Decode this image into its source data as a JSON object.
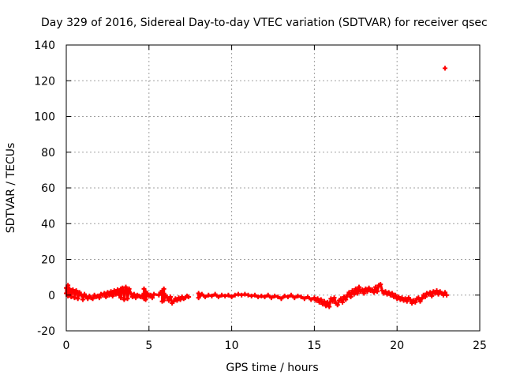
{
  "chart_data": {
    "type": "scatter",
    "title": "Day 329 of 2016, Sidereal Day-to-day VTEC variation (SDTVAR) for receiver qsec",
    "xlabel": "GPS time / hours",
    "ylabel": "SDTVAR / TECUs",
    "xlim": [
      0,
      25
    ],
    "ylim": [
      -20,
      140
    ],
    "xticks": [
      0,
      5,
      10,
      15,
      20,
      25
    ],
    "yticks": [
      -20,
      0,
      20,
      40,
      60,
      80,
      100,
      120,
      140
    ],
    "xtick_labels": [
      "0",
      "5",
      "10",
      "15",
      "20",
      "25"
    ],
    "ytick_labels": [
      "-20",
      "0",
      "20",
      "40",
      "60",
      "80",
      "100",
      "120",
      "140"
    ],
    "grid": true,
    "marker": "plus",
    "series": [
      {
        "name": "SDTVAR",
        "color": "#ff0000",
        "points": [
          [
            0.0,
            4.0
          ],
          [
            0.0,
            1.0
          ],
          [
            0.1,
            5.5
          ],
          [
            0.1,
            -0.5
          ],
          [
            0.2,
            3.5
          ],
          [
            0.2,
            0.0
          ],
          [
            0.3,
            2.5
          ],
          [
            0.3,
            -1.0
          ],
          [
            0.4,
            3.0
          ],
          [
            0.5,
            2.0
          ],
          [
            0.5,
            -1.5
          ],
          [
            0.6,
            2.5
          ],
          [
            0.7,
            1.0
          ],
          [
            0.7,
            -2.0
          ],
          [
            0.8,
            1.5
          ],
          [
            0.9,
            0.0
          ],
          [
            1.0,
            -0.5
          ],
          [
            1.0,
            -2.5
          ],
          [
            1.1,
            0.5
          ],
          [
            1.2,
            -1.0
          ],
          [
            1.3,
            -2.0
          ],
          [
            1.4,
            -0.5
          ],
          [
            1.5,
            -1.5
          ],
          [
            1.6,
            -2.0
          ],
          [
            1.7,
            0.0
          ],
          [
            1.8,
            -1.0
          ],
          [
            1.9,
            -0.5
          ],
          [
            2.0,
            -1.5
          ],
          [
            2.1,
            0.5
          ],
          [
            2.2,
            0.0
          ],
          [
            2.3,
            1.0
          ],
          [
            2.4,
            -1.0
          ],
          [
            2.5,
            1.5
          ],
          [
            2.6,
            0.0
          ],
          [
            2.7,
            2.0
          ],
          [
            2.8,
            -0.5
          ],
          [
            2.9,
            2.5
          ],
          [
            3.0,
            0.5
          ],
          [
            3.1,
            3.0
          ],
          [
            3.2,
            0.0
          ],
          [
            3.3,
            3.5
          ],
          [
            3.3,
            -1.5
          ],
          [
            3.4,
            4.0
          ],
          [
            3.5,
            1.0
          ],
          [
            3.5,
            -2.5
          ],
          [
            3.6,
            4.5
          ],
          [
            3.7,
            2.0
          ],
          [
            3.7,
            -2.0
          ],
          [
            3.8,
            3.5
          ],
          [
            3.9,
            1.0
          ],
          [
            4.0,
            -1.0
          ],
          [
            4.1,
            0.5
          ],
          [
            4.2,
            -1.5
          ],
          [
            4.3,
            0.0
          ],
          [
            4.4,
            -0.5
          ],
          [
            4.5,
            -1.0
          ],
          [
            4.6,
            0.0
          ],
          [
            4.7,
            -2.0
          ],
          [
            4.7,
            3.5
          ],
          [
            4.8,
            2.0
          ],
          [
            4.8,
            -2.5
          ],
          [
            4.9,
            1.0
          ],
          [
            5.0,
            -0.5
          ],
          [
            5.1,
            0.0
          ],
          [
            5.2,
            -1.5
          ],
          [
            5.3,
            0.5
          ],
          [
            5.6,
            0.0
          ],
          [
            5.7,
            1.5
          ],
          [
            5.8,
            2.5
          ],
          [
            5.8,
            -3.5
          ],
          [
            5.9,
            3.5
          ],
          [
            5.9,
            -3.0
          ],
          [
            6.0,
            0.0
          ],
          [
            6.1,
            -1.5
          ],
          [
            6.2,
            -3.0
          ],
          [
            6.3,
            -1.0
          ],
          [
            6.4,
            -4.5
          ],
          [
            6.5,
            -3.5
          ],
          [
            6.6,
            -2.0
          ],
          [
            6.7,
            -3.0
          ],
          [
            6.8,
            -1.5
          ],
          [
            6.9,
            -2.5
          ],
          [
            7.0,
            -1.0
          ],
          [
            7.1,
            -2.0
          ],
          [
            7.2,
            -1.5
          ],
          [
            7.3,
            -0.5
          ],
          [
            7.4,
            -1.0
          ],
          [
            8.0,
            1.0
          ],
          [
            8.0,
            -1.5
          ],
          [
            8.2,
            0.5
          ],
          [
            8.4,
            -1.0
          ],
          [
            8.6,
            0.0
          ],
          [
            8.8,
            -0.5
          ],
          [
            9.0,
            0.5
          ],
          [
            9.2,
            -1.0
          ],
          [
            9.4,
            0.0
          ],
          [
            9.6,
            -0.5
          ],
          [
            9.8,
            0.0
          ],
          [
            10.0,
            -1.0
          ],
          [
            10.2,
            0.0
          ],
          [
            10.4,
            0.5
          ],
          [
            10.6,
            0.0
          ],
          [
            10.8,
            0.5
          ],
          [
            11.0,
            0.0
          ],
          [
            11.2,
            -0.5
          ],
          [
            11.4,
            0.0
          ],
          [
            11.6,
            -1.0
          ],
          [
            11.8,
            -0.5
          ],
          [
            12.0,
            -1.0
          ],
          [
            12.2,
            0.0
          ],
          [
            12.4,
            -1.5
          ],
          [
            12.6,
            -0.5
          ],
          [
            12.8,
            -1.0
          ],
          [
            13.0,
            -2.0
          ],
          [
            13.2,
            -0.5
          ],
          [
            13.4,
            -1.0
          ],
          [
            13.6,
            0.0
          ],
          [
            13.8,
            -1.5
          ],
          [
            14.0,
            -0.5
          ],
          [
            14.2,
            -1.0
          ],
          [
            14.4,
            -2.0
          ],
          [
            14.6,
            -1.0
          ],
          [
            14.8,
            -2.5
          ],
          [
            15.0,
            -1.5
          ],
          [
            15.1,
            -3.0
          ],
          [
            15.2,
            -2.0
          ],
          [
            15.3,
            -4.0
          ],
          [
            15.4,
            -2.5
          ],
          [
            15.5,
            -5.0
          ],
          [
            15.6,
            -3.5
          ],
          [
            15.7,
            -6.0
          ],
          [
            15.8,
            -4.0
          ],
          [
            15.9,
            -6.5
          ],
          [
            16.0,
            -2.0
          ],
          [
            16.1,
            -3.5
          ],
          [
            16.2,
            -1.5
          ],
          [
            16.3,
            -4.5
          ],
          [
            16.4,
            -5.5
          ],
          [
            16.5,
            -3.0
          ],
          [
            16.6,
            -2.0
          ],
          [
            16.7,
            -4.0
          ],
          [
            16.8,
            -1.0
          ],
          [
            16.9,
            -2.5
          ],
          [
            17.0,
            0.0
          ],
          [
            17.1,
            1.5
          ],
          [
            17.2,
            -1.0
          ],
          [
            17.3,
            2.5
          ],
          [
            17.4,
            0.5
          ],
          [
            17.5,
            3.5
          ],
          [
            17.6,
            1.0
          ],
          [
            17.7,
            4.5
          ],
          [
            17.8,
            2.0
          ],
          [
            17.9,
            3.0
          ],
          [
            18.0,
            1.0
          ],
          [
            18.1,
            3.5
          ],
          [
            18.2,
            2.0
          ],
          [
            18.3,
            4.0
          ],
          [
            18.4,
            2.5
          ],
          [
            18.5,
            3.0
          ],
          [
            18.6,
            1.5
          ],
          [
            18.7,
            4.5
          ],
          [
            18.8,
            2.0
          ],
          [
            18.9,
            5.5
          ],
          [
            19.0,
            6.0
          ],
          [
            19.1,
            2.5
          ],
          [
            19.2,
            1.0
          ],
          [
            19.3,
            2.0
          ],
          [
            19.4,
            0.5
          ],
          [
            19.5,
            1.5
          ],
          [
            19.6,
            0.0
          ],
          [
            19.7,
            1.0
          ],
          [
            19.8,
            -1.0
          ],
          [
            19.9,
            0.0
          ],
          [
            20.0,
            -2.0
          ],
          [
            20.1,
            -1.0
          ],
          [
            20.2,
            -2.5
          ],
          [
            20.3,
            -1.5
          ],
          [
            20.4,
            -3.0
          ],
          [
            20.5,
            -2.0
          ],
          [
            20.6,
            -3.5
          ],
          [
            20.7,
            -1.5
          ],
          [
            20.8,
            -2.5
          ],
          [
            20.9,
            -4.5
          ],
          [
            21.0,
            -3.0
          ],
          [
            21.1,
            -4.0
          ],
          [
            21.2,
            -2.0
          ],
          [
            21.3,
            -1.5
          ],
          [
            21.4,
            -3.5
          ],
          [
            21.5,
            -2.0
          ],
          [
            21.6,
            0.0
          ],
          [
            21.7,
            -1.0
          ],
          [
            21.8,
            1.0
          ],
          [
            21.9,
            0.5
          ],
          [
            22.0,
            1.5
          ],
          [
            22.1,
            -0.5
          ],
          [
            22.2,
            2.0
          ],
          [
            22.3,
            1.0
          ],
          [
            22.4,
            2.5
          ],
          [
            22.5,
            0.5
          ],
          [
            22.6,
            2.0
          ],
          [
            22.7,
            1.0
          ],
          [
            22.8,
            0.0
          ],
          [
            22.9,
            1.5
          ],
          [
            23.0,
            0.0
          ],
          [
            22.9,
            127.0
          ]
        ]
      }
    ]
  }
}
